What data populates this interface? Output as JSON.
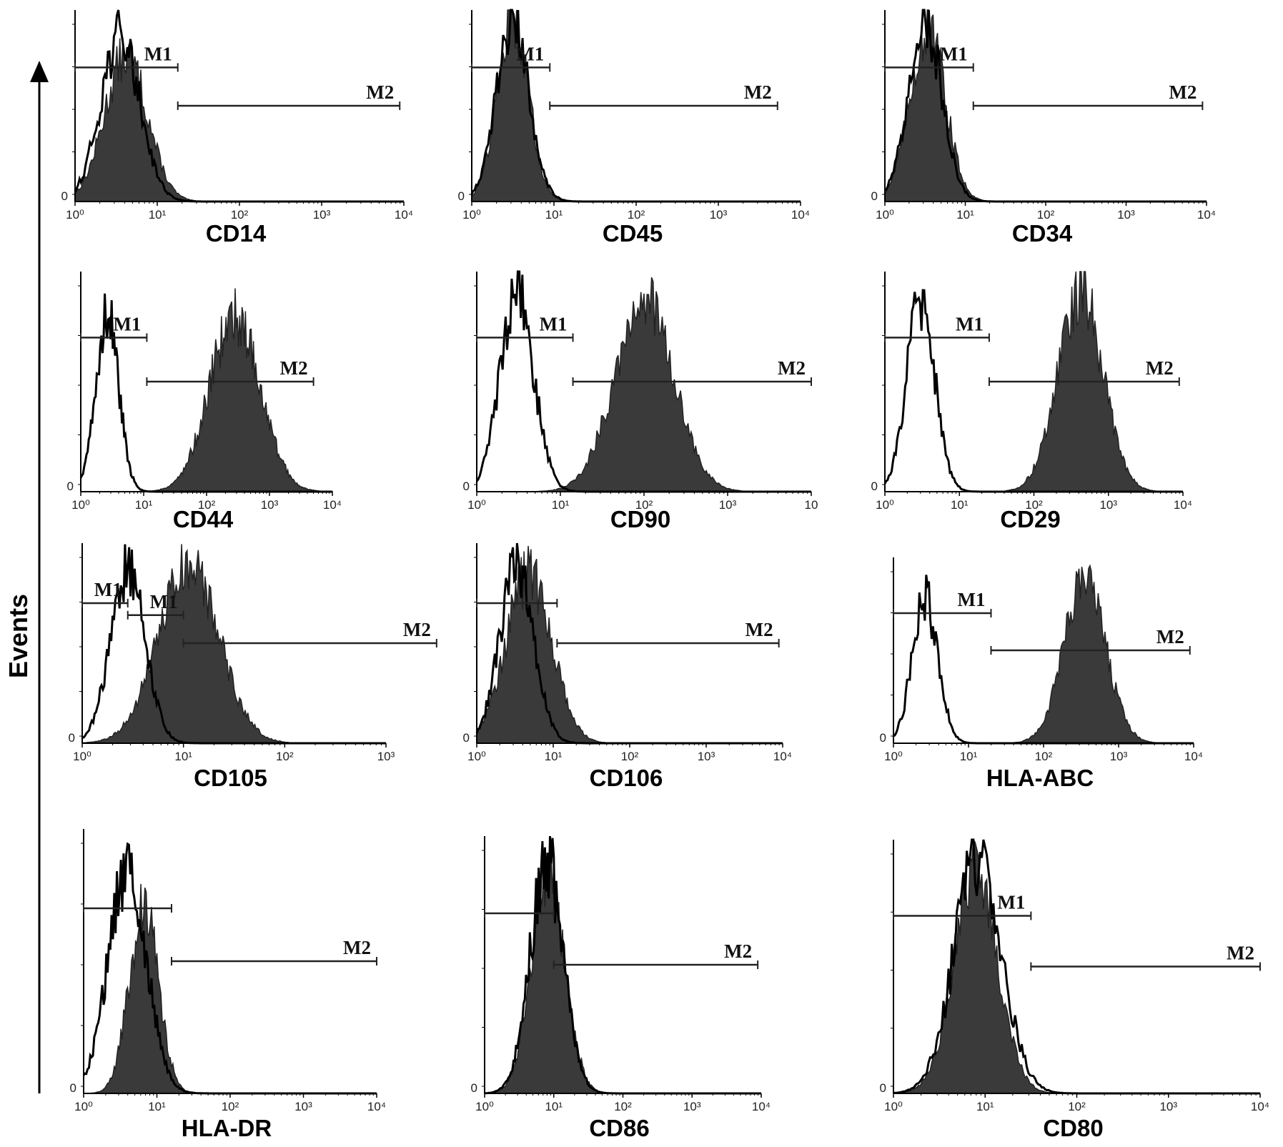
{
  "y_axis_label": "Events",
  "chart_data": [
    {
      "type": "area",
      "label": "CD14",
      "x_scale": "log",
      "x_ticks": [
        "10⁰",
        "10¹",
        "10²",
        "10³",
        "10⁴"
      ],
      "y_tick": "0",
      "control": {
        "mu": 0.55,
        "sd": 0.24,
        "amp": 0.86
      },
      "stained": {
        "mu": 0.62,
        "sd": 0.26,
        "amp": 0.76
      },
      "gates": [
        {
          "name": "M1",
          "from": 0,
          "to": 1.25
        },
        {
          "name": "M2",
          "from": 1.25,
          "to": 3.95
        }
      ]
    },
    {
      "type": "area",
      "label": "CD45",
      "x_scale": "log",
      "x_ticks": [
        "10⁰",
        "10¹",
        "10²",
        "10³",
        "10⁴"
      ],
      "y_tick": "0",
      "control": {
        "mu": 0.5,
        "sd": 0.2,
        "amp": 0.92
      },
      "stained": {
        "mu": 0.5,
        "sd": 0.19,
        "amp": 0.96
      },
      "gates": [
        {
          "name": "M1",
          "from": 0,
          "to": 0.95
        },
        {
          "name": "M2",
          "from": 0.95,
          "to": 3.72
        }
      ]
    },
    {
      "type": "area",
      "label": "CD34",
      "x_scale": "log",
      "x_ticks": [
        "10⁰",
        "10¹",
        "10²",
        "10³",
        "10⁴"
      ],
      "y_tick": "0",
      "control": {
        "mu": 0.5,
        "sd": 0.21,
        "amp": 0.94
      },
      "stained": {
        "mu": 0.53,
        "sd": 0.22,
        "amp": 0.9
      },
      "gates": [
        {
          "name": "M1",
          "from": 0,
          "to": 1.1
        },
        {
          "name": "M2",
          "from": 1.1,
          "to": 3.95
        }
      ]
    },
    {
      "type": "area",
      "label": "CD44",
      "x_scale": "log",
      "x_ticks": [
        "10⁰",
        "10¹",
        "10²",
        "10³",
        "10⁴"
      ],
      "y_tick": "0",
      "control": {
        "mu": 0.42,
        "sd": 0.18,
        "amp": 0.82
      },
      "stained": {
        "mu": 2.45,
        "sd": 0.4,
        "amp": 0.8
      },
      "gates": [
        {
          "name": "M1",
          "from": 0,
          "to": 1.05
        },
        {
          "name": "M2",
          "from": 1.05,
          "to": 3.7
        }
      ]
    },
    {
      "type": "area",
      "label": "CD90",
      "x_scale": "log",
      "x_ticks": [
        "10⁰",
        "10¹",
        "10²",
        "10³",
        "10"
      ],
      "y_tick": "0",
      "control": {
        "mu": 0.48,
        "sd": 0.2,
        "amp": 0.9
      },
      "stained": {
        "mu": 2.0,
        "sd": 0.35,
        "amp": 0.88
      },
      "gates": [
        {
          "name": "M1",
          "from": 0,
          "to": 1.15
        },
        {
          "name": "M2",
          "from": 1.15,
          "to": 4.0
        }
      ]
    },
    {
      "type": "area",
      "label": "CD29",
      "x_scale": "log",
      "x_ticks": [
        "10⁰",
        "10¹",
        "10²",
        "10³",
        "10⁴"
      ],
      "y_tick": "0",
      "control": {
        "mu": 0.48,
        "sd": 0.19,
        "amp": 0.86
      },
      "stained": {
        "mu": 2.62,
        "sd": 0.3,
        "amp": 0.92
      },
      "gates": [
        {
          "name": "M1",
          "from": 0,
          "to": 1.4
        },
        {
          "name": "M2",
          "from": 1.4,
          "to": 3.95
        }
      ]
    },
    {
      "type": "area",
      "label": "CD105",
      "x_scale": "log",
      "x_ticks": [
        "10⁰",
        "10¹",
        "10²",
        "10³"
      ],
      "y_tick": "0",
      "control": {
        "mu": 0.45,
        "sd": 0.17,
        "amp": 0.86
      },
      "stained": {
        "mu": 1.05,
        "sd": 0.3,
        "amp": 0.88
      },
      "gates": [
        {
          "name": "M1",
          "from": 0,
          "to": 0.45
        },
        {
          "name": "M1",
          "from": 0.45,
          "to": 1.0
        },
        {
          "name": "M2",
          "from": 1.0,
          "to": 3.5
        }
      ]
    },
    {
      "type": "area",
      "label": "CD106",
      "x_scale": "log",
      "x_ticks": [
        "10⁰",
        "10¹",
        "10²",
        "10³",
        "10⁴"
      ],
      "y_tick": "0",
      "control": {
        "mu": 0.52,
        "sd": 0.22,
        "amp": 0.9
      },
      "stained": {
        "mu": 0.68,
        "sd": 0.3,
        "amp": 0.84
      },
      "gates": [
        {
          "name": "",
          "from": 0,
          "to": 1.05
        },
        {
          "name": "M2",
          "from": 1.05,
          "to": 3.95
        }
      ]
    },
    {
      "type": "area",
      "label": "HLA-ABC",
      "x_scale": "log",
      "x_ticks": [
        "10⁰",
        "10¹",
        "10²",
        "10³",
        "10⁴"
      ],
      "y_tick": "0",
      "control": {
        "mu": 0.42,
        "sd": 0.17,
        "amp": 0.78
      },
      "stained": {
        "mu": 2.55,
        "sd": 0.28,
        "amp": 0.86
      },
      "gates": [
        {
          "name": "M1",
          "from": 0,
          "to": 1.3
        },
        {
          "name": "M2",
          "from": 1.3,
          "to": 3.95
        }
      ]
    },
    {
      "type": "area",
      "label": "HLA-DR",
      "x_scale": "log",
      "x_ticks": [
        "10⁰",
        "10¹",
        "10²",
        "10³",
        "10⁴"
      ],
      "y_tick": "0",
      "control": {
        "mu": 0.6,
        "sd": 0.26,
        "amp": 0.86
      },
      "stained": {
        "mu": 0.82,
        "sd": 0.2,
        "amp": 0.7
      },
      "gates": [
        {
          "name": "",
          "from": 0,
          "to": 1.2
        },
        {
          "name": "M2",
          "from": 1.2,
          "to": 4.0
        }
      ]
    },
    {
      "type": "area",
      "label": "CD86",
      "x_scale": "log",
      "x_ticks": [
        "10⁰",
        "10¹",
        "10²",
        "10³",
        "10⁴"
      ],
      "y_tick": "0",
      "control": {
        "mu": 0.9,
        "sd": 0.24,
        "amp": 0.9
      },
      "stained": {
        "mu": 0.92,
        "sd": 0.24,
        "amp": 0.86
      },
      "gates": [
        {
          "name": "",
          "from": 0,
          "to": 1.0
        },
        {
          "name": "M2",
          "from": 1.0,
          "to": 3.95
        }
      ]
    },
    {
      "type": "area",
      "label": "CD80",
      "x_scale": "log",
      "x_ticks": [
        "10⁰",
        "10¹",
        "10²",
        "10³",
        "10⁴"
      ],
      "y_tick": "0",
      "control": {
        "mu": 0.92,
        "sd": 0.26,
        "amp": 0.92
      },
      "stained": {
        "mu": 0.9,
        "sd": 0.24,
        "amp": 0.86
      },
      "gates": [
        {
          "name": "M1",
          "from": 0,
          "to": 1.5
        },
        {
          "name": "M2",
          "from": 1.5,
          "to": 4.0
        }
      ]
    }
  ]
}
